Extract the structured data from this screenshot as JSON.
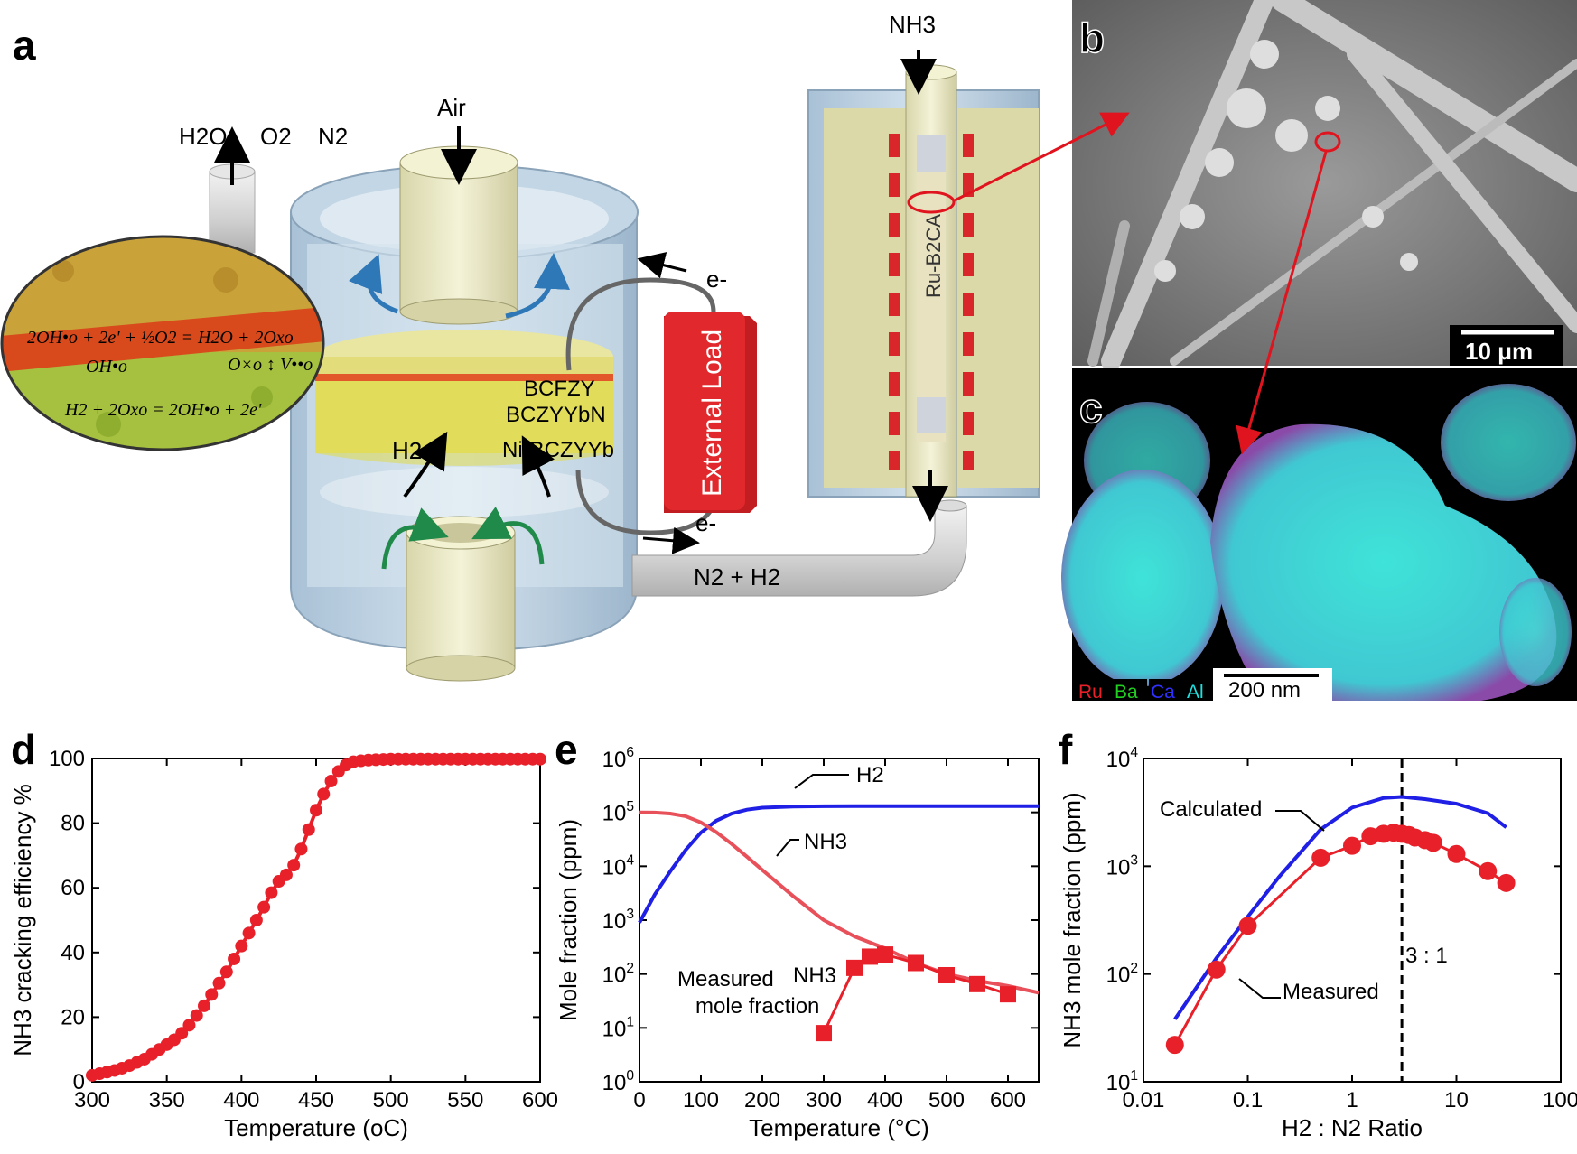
{
  "panels": {
    "a": {
      "label": "a",
      "labels": {
        "nh3_in": "NH3",
        "h2o": "H2O",
        "o2": "O2",
        "n2": "N2",
        "air": "Air",
        "e_top": "e-",
        "e_bottom": "e-",
        "external_load": "External Load",
        "catalyst": "Ru-B2CA",
        "layer_cathode": "BCFZY",
        "layer_electrolyte": "BCZYYbN",
        "layer_anode": "Ni-BCZYYb",
        "h2": "H2",
        "n2_h2": "N2 + H2"
      },
      "equations": {
        "eq1": "2OH•o + 2e' + ½O2 = H2O + 2Oxo",
        "oh": "OH•o",
        "vac": "O×o ↕ V••o",
        "eq2": "H2 + 2Oxo = 2OH•o + 2e'"
      }
    },
    "b": {
      "label": "b",
      "scalebar": "10 μm"
    },
    "c": {
      "label": "c",
      "scalebar": "200 nm",
      "legend": [
        {
          "name": "Ru",
          "color": "#e8202a"
        },
        {
          "name": "Ba",
          "color": "#20d020"
        },
        {
          "name": "Ca",
          "color": "#3030ff"
        },
        {
          "name": "Al",
          "color": "#20e0e0"
        }
      ]
    },
    "d": {
      "label": "d"
    },
    "e": {
      "label": "e",
      "annotations": {
        "h2": "H2",
        "nh3": "NH3",
        "measured": "Measured",
        "measured_gas": "NH3",
        "mole_fraction": "mole fraction"
      }
    },
    "f": {
      "label": "f",
      "annotations": {
        "calculated": "Calculated",
        "measured": "Measured",
        "ratio": "3 : 1"
      }
    }
  },
  "colors": {
    "red": "#e8202a",
    "blue": "#1f1fe6",
    "calc_red": "#e8505a",
    "load": "#d8262a",
    "cell": "#b8cfe0",
    "tube": "#ecebc8"
  },
  "chart_data": [
    {
      "panel": "d",
      "type": "line",
      "xlabel": "Temperature (oC)",
      "ylabel": "NH3 cracking efficiency %",
      "xlim": [
        300,
        600
      ],
      "ylim": [
        0,
        100
      ],
      "xticks": [
        300,
        350,
        400,
        450,
        500,
        550,
        600
      ],
      "yticks": [
        0,
        20,
        40,
        60,
        80,
        100
      ],
      "series": [
        {
          "color": "#e8202a",
          "x": [
            300,
            305,
            310,
            315,
            320,
            325,
            330,
            335,
            340,
            345,
            350,
            355,
            360,
            365,
            370,
            375,
            380,
            385,
            390,
            395,
            400,
            405,
            410,
            415,
            420,
            425,
            430,
            435,
            440,
            445,
            450,
            455,
            460,
            465,
            470,
            475,
            480,
            485,
            490,
            495,
            500,
            505,
            510,
            515,
            520,
            525,
            530,
            535,
            540,
            545,
            550,
            555,
            560,
            565,
            570,
            575,
            580,
            585,
            590,
            595,
            600
          ],
          "y": [
            2,
            2.5,
            3,
            3.5,
            4.2,
            5,
            6,
            7,
            8.5,
            10,
            11.5,
            13,
            15,
            17.5,
            20.5,
            23.5,
            27,
            30.5,
            34,
            38,
            42,
            46,
            50,
            54,
            58.5,
            62,
            64,
            67,
            72,
            78,
            84,
            89,
            93,
            96,
            98,
            99,
            99.3,
            99.5,
            99.6,
            99.7,
            99.8,
            99.8,
            99.8,
            99.8,
            99.8,
            99.8,
            99.8,
            99.8,
            99.8,
            99.8,
            99.8,
            99.8,
            99.8,
            99.8,
            99.8,
            99.8,
            99.8,
            99.8,
            99.8,
            99.8,
            99.8
          ]
        }
      ]
    },
    {
      "panel": "e",
      "type": "line",
      "xlabel": "Temperature (°C)",
      "ylabel": "Mole fraction (ppm)",
      "xlim": [
        0,
        650
      ],
      "ylim": [
        1,
        1000000
      ],
      "yscale": "log",
      "xticks": [
        0,
        100,
        200,
        300,
        400,
        500,
        600
      ],
      "ytick_exponents": [
        0,
        1,
        2,
        3,
        4,
        5,
        6
      ],
      "series": [
        {
          "name": "H2",
          "color": "#1f1fe6",
          "x": [
            0,
            25,
            50,
            75,
            100,
            125,
            150,
            175,
            200,
            250,
            300,
            350,
            400,
            450,
            500,
            550,
            600,
            650
          ],
          "y": [
            900,
            3000,
            8000,
            20000,
            42000,
            70000,
            95000,
            112000,
            122000,
            128000,
            130000,
            131000,
            131000,
            131000,
            131000,
            131000,
            131000,
            131000
          ]
        },
        {
          "name": "NH3",
          "color": "#e8505a",
          "x": [
            0,
            25,
            50,
            75,
            100,
            125,
            150,
            175,
            200,
            250,
            300,
            350,
            400,
            450,
            500,
            550,
            600,
            650
          ],
          "y": [
            100000,
            99000,
            95000,
            85000,
            65000,
            43000,
            26000,
            15000,
            8500,
            2800,
            1000,
            500,
            300,
            160,
            100,
            75,
            60,
            45
          ]
        },
        {
          "name": "NH3",
          "color": "#e8202a",
          "marker": "square",
          "x": [
            300,
            350,
            375,
            400,
            450,
            500,
            550,
            600
          ],
          "y": [
            8,
            130,
            210,
            230,
            160,
            95,
            65,
            42
          ]
        }
      ]
    },
    {
      "panel": "f",
      "type": "line",
      "xlabel": "H2 : N2 Ratio",
      "ylabel": "NH3 mole fraction (ppm)",
      "xlim": [
        0.01,
        100
      ],
      "ylim": [
        10,
        10000
      ],
      "xscale": "log",
      "yscale": "log",
      "xticks": [
        0.01,
        0.1,
        1,
        10,
        100
      ],
      "ytick_exponents": [
        1,
        2,
        3,
        4
      ],
      "vline": 3,
      "series": [
        {
          "name": "Calculated",
          "color": "#1f1fe6",
          "x": [
            0.02,
            0.05,
            0.1,
            0.2,
            0.5,
            1,
            2,
            3,
            5,
            10,
            20,
            30
          ],
          "y": [
            38,
            140,
            340,
            800,
            2200,
            3500,
            4300,
            4400,
            4200,
            3800,
            3100,
            2300
          ]
        },
        {
          "name": "Measured",
          "color": "#e8202a",
          "marker": "circle",
          "x": [
            0.02,
            0.05,
            0.1,
            0.5,
            1,
            1.5,
            2,
            2.5,
            3,
            3.5,
            4,
            5,
            6,
            10,
            20,
            30
          ],
          "y": [
            22,
            110,
            280,
            1200,
            1550,
            1900,
            2000,
            2050,
            2000,
            1950,
            1850,
            1750,
            1650,
            1300,
            900,
            700
          ]
        }
      ]
    }
  ]
}
